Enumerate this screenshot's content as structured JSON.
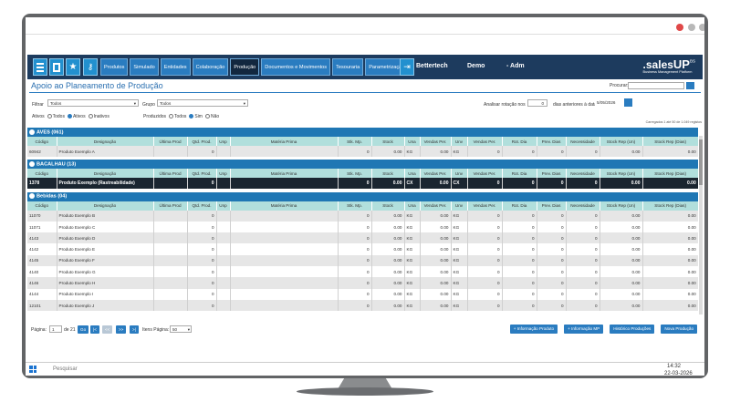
{
  "nav": {
    "items": [
      "Produtos",
      "Simulado",
      "Entidades",
      "Colaboração",
      "Produção",
      "Documentos e Movimentos",
      "Tesouraria",
      "Parametrização"
    ],
    "active": 4,
    "company": "Bettertech",
    "user": "Demo",
    "role": "- Adm",
    "logo_a": ".sales",
    "logo_b": "UP",
    "logo_sup": "BS",
    "tagline": "Business Management Platform"
  },
  "page": {
    "title": "Apoio ao Planeamento de Produção",
    "search_label": "Procurar:"
  },
  "filters": {
    "filter_label": "Filtrar",
    "filter_value": "Todos",
    "group_label": "Grupo",
    "group_value": "Todos",
    "rotation_label": "Analisar rotação nos",
    "rotation_days": "0",
    "days_label": "dias anteriores à data",
    "date": "5/05/2026",
    "active_label": "Ativos",
    "active_options": [
      "Todos",
      "Ativos",
      "Inativos"
    ],
    "active_selected": 1,
    "produced_label": "Produzidos",
    "produced_options": [
      "Todos",
      "Sim",
      "Não"
    ],
    "produced_selected": 1
  },
  "records_info": "Carregados 1 até 50 de 1.049 registos",
  "table": {
    "columns": [
      "Código",
      "Designação",
      "Última Prod",
      "Qtd. Prod.",
      "Unp",
      "Matéria Prima",
      "Stk. Mp.",
      "Stock",
      "Una",
      "Vendas Per.",
      "Unv",
      "Vendas Per.",
      "Rot. Dia",
      "Prev. Dias",
      "Necessidade",
      "Stock Rep (Un)",
      "Stock Rep (Dias)"
    ],
    "groups": [
      {
        "name": "AVES (061)",
        "rows": [
          [
            "60942",
            "Produto Exemplo A",
            null,
            "0",
            null,
            null,
            "0",
            "0.00",
            "KG",
            "0.00",
            "KG",
            "0",
            "0",
            "0",
            "0",
            "0.00",
            "0.00"
          ]
        ]
      },
      {
        "name": "BACALHAU (13)",
        "selected": 0,
        "rows": [
          [
            "1378",
            "Produto Exemplo (Rastreabilidade)",
            null,
            "0",
            null,
            null,
            "0",
            "0.00",
            "CX",
            "0.00",
            "CX",
            "0",
            "0",
            "0",
            "0",
            "0.00",
            "0.00"
          ]
        ]
      },
      {
        "name": "Bebidas (04)",
        "rows": [
          [
            "11070",
            "Produto Exemplo B",
            null,
            "0",
            null,
            null,
            "0",
            "0.00",
            "KG",
            "0.00",
            "KG",
            "0",
            "0",
            "0",
            "0",
            "0.00",
            "0.00"
          ],
          [
            "11071",
            "Produto Exemplo C",
            null,
            "0",
            null,
            null,
            "0",
            "0.00",
            "KG",
            "0.00",
            "KG",
            "0",
            "0",
            "0",
            "0",
            "0.00",
            "0.00"
          ],
          [
            "4143",
            "Produto Exemplo D",
            null,
            "0",
            null,
            null,
            "0",
            "0.00",
            "KG",
            "0.00",
            "KG",
            "0",
            "0",
            "0",
            "0",
            "0.00",
            "0.00"
          ],
          [
            "4142",
            "Produto Exemplo E",
            null,
            "0",
            null,
            null,
            "0",
            "0.00",
            "KG",
            "0.00",
            "KG",
            "0",
            "0",
            "0",
            "0",
            "0.00",
            "0.00"
          ],
          [
            "4145",
            "Produto Exemplo F",
            null,
            "0",
            null,
            null,
            "0",
            "0.00",
            "KG",
            "0.00",
            "KG",
            "0",
            "0",
            "0",
            "0",
            "0.00",
            "0.00"
          ],
          [
            "4140",
            "Produto Exemplo G",
            null,
            "0",
            null,
            null,
            "0",
            "0.00",
            "KG",
            "0.00",
            "KG",
            "0",
            "0",
            "0",
            "0",
            "0.00",
            "0.00"
          ],
          [
            "4146",
            "Produto Exemplo H",
            null,
            "0",
            null,
            null,
            "0",
            "0.00",
            "KG",
            "0.00",
            "KG",
            "0",
            "0",
            "0",
            "0",
            "0.00",
            "0.00"
          ],
          [
            "4144",
            "Produto Exemplo I",
            null,
            "0",
            null,
            null,
            "0",
            "0.00",
            "KG",
            "0.00",
            "KG",
            "0",
            "0",
            "0",
            "0",
            "0.00",
            "0.00"
          ],
          [
            "12101",
            "Produto Exemplo J",
            null,
            "0",
            null,
            null,
            "0",
            "0.00",
            "KG",
            "0.00",
            "KG",
            "0",
            "0",
            "0",
            "0",
            "0.00",
            "0.00"
          ]
        ]
      }
    ]
  },
  "pagination": {
    "page_label": "Página:",
    "page": "1",
    "of": "de 21",
    "go": "Go",
    "first": "|<",
    "prev": "<<",
    "next": ">>",
    "last": ">|",
    "items_label": "Itens Página:",
    "items": "50"
  },
  "actions": [
    "+ Informação Produto",
    "+ Informação MP",
    "Histórico Produções",
    "Nova Produção"
  ],
  "taskbar": {
    "search": "Pesquisar",
    "time": "14:32",
    "date": "22-03-2026"
  }
}
